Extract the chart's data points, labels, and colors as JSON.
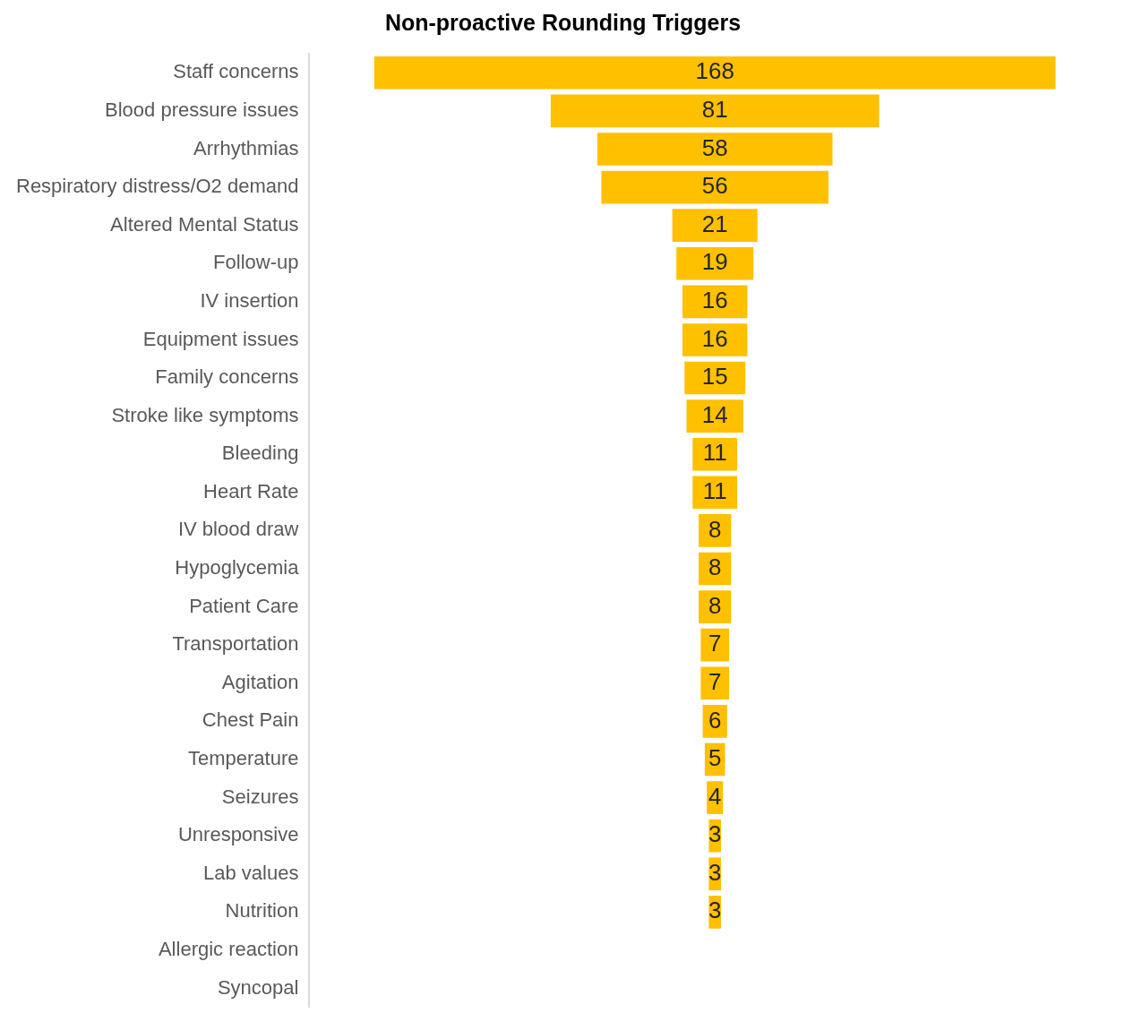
{
  "chart_data": {
    "type": "other",
    "title": "Non-proactive Rounding Triggers",
    "categories": [
      "Staff concerns",
      "Blood pressure issues",
      "Arrhythmias",
      "Respiratory distress/O2 demand",
      "Altered Mental Status",
      "Follow-up",
      "IV insertion",
      "Equipment issues",
      "Family concerns",
      "Stroke like symptoms",
      "Bleeding",
      "Heart Rate",
      "IV blood draw",
      "Hypoglycemia",
      "Patient Care",
      "Transportation",
      "Agitation",
      "Chest Pain",
      "Temperature",
      "Seizures",
      "Unresponsive",
      "Lab values",
      "Nutrition",
      "Allergic reaction",
      "Syncopal"
    ],
    "values": [
      168,
      81,
      58,
      56,
      21,
      19,
      16,
      16,
      15,
      14,
      11,
      11,
      8,
      8,
      8,
      7,
      7,
      6,
      5,
      4,
      3,
      3,
      3,
      null,
      null
    ],
    "value_labels": [
      "168",
      "81",
      "58",
      "56",
      "21",
      "19",
      "16",
      "16",
      "15",
      "14",
      "11",
      "11",
      "8",
      "8",
      "8",
      "7",
      "7",
      "6",
      "5",
      "4",
      "3",
      "3",
      "3",
      null,
      null
    ],
    "color": "#ffc000",
    "legend": false
  }
}
